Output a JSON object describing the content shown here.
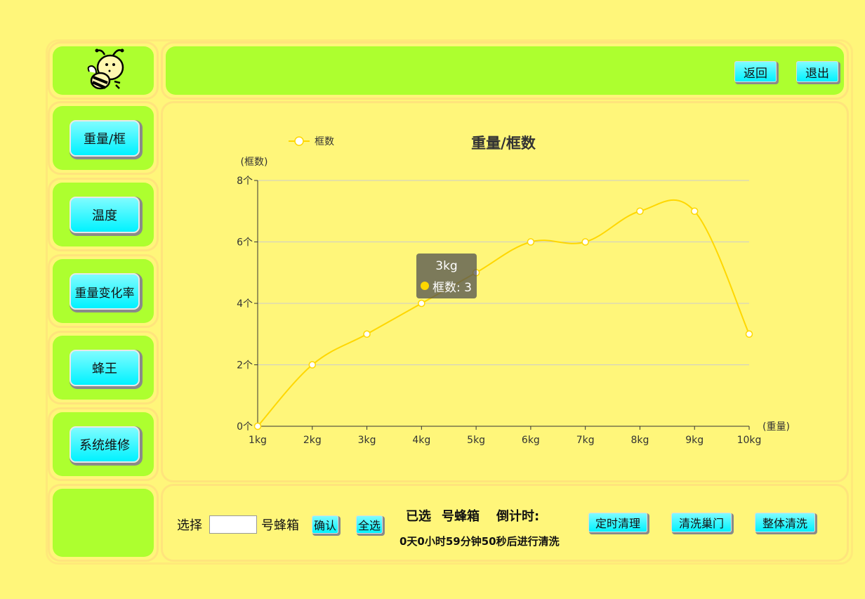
{
  "header": {
    "back_label": "返回",
    "exit_label": "退出"
  },
  "sidebar": {
    "items": [
      {
        "label": "重量/框"
      },
      {
        "label": "温度"
      },
      {
        "label": "重量变化率"
      },
      {
        "label": "蜂王"
      },
      {
        "label": "系统维修"
      }
    ]
  },
  "chart_data": {
    "type": "line",
    "title": "重量/框数",
    "legend": [
      "框数"
    ],
    "legend_position": "top-left",
    "xlabel": "(重量)",
    "ylabel": "(框数)",
    "categories": [
      "1kg",
      "2kg",
      "3kg",
      "4kg",
      "5kg",
      "6kg",
      "7kg",
      "8kg",
      "9kg",
      "10kg"
    ],
    "series": [
      {
        "name": "框数",
        "values": [
          0,
          2,
          3,
          4,
          5,
          6,
          6,
          7,
          7,
          3
        ]
      }
    ],
    "ylim": [
      0,
      8
    ],
    "yticks": [
      "0个",
      "2个",
      "4个",
      "6个",
      "8个"
    ],
    "grid": true,
    "smooth": true,
    "line_color": "#ffd700",
    "tooltip": {
      "title": "3kg",
      "text": "框数: 3"
    }
  },
  "footer": {
    "select_label": "选择",
    "hive_input_value": "",
    "hive_suffix": "号蜂箱",
    "confirm_label": "确认",
    "select_all_label": "全选",
    "selected_label": "已选",
    "selected_hive_suffix": "号蜂箱",
    "countdown_label": "倒计时:",
    "countdown_text": "0天0小时59分钟50秒后进行清洗",
    "buttons": {
      "timed_clean": "定时清理",
      "clean_door": "清洗巢门",
      "whole_clean": "整体清洗"
    }
  }
}
